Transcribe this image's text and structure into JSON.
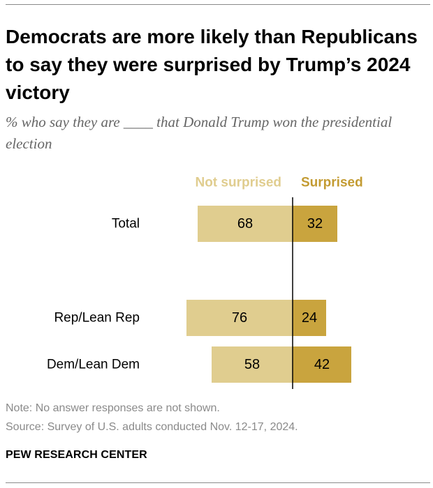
{
  "title": "Democrats are more likely than Republicans to say they were surprised by Trump’s 2024 victory",
  "subtitle": "% who say they are ____ that Donald Trump won the presidential election",
  "note": "Note: No answer responses are not shown.",
  "source": "Source: Survey of U.S. adults conducted Nov. 12-17, 2024.",
  "brand": "PEW RESEARCH CENTER",
  "colors": {
    "not_surprised": "#e0cd8f",
    "surprised": "#c9a43e",
    "not_surprised_label": "#e0cd8f",
    "surprised_label": "#c39b32",
    "axis": "#000000"
  },
  "chart_data": {
    "type": "bar",
    "orientation": "horizontal-diverging",
    "categories": [
      "Total",
      "Rep/Lean Rep",
      "Dem/Lean Dem"
    ],
    "series": [
      {
        "name": "Not surprised",
        "values": [
          68,
          76,
          58
        ]
      },
      {
        "name": "Surprised",
        "values": [
          32,
          24,
          42
        ]
      }
    ],
    "title": "Democrats are more likely than Republicans to say they were surprised by Trump’s 2024 victory",
    "xlabel": "",
    "ylabel": "",
    "grid": false,
    "legend": "top"
  }
}
